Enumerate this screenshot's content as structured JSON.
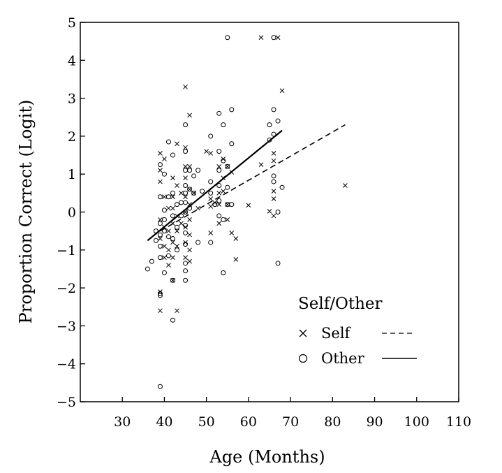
{
  "chart_data": {
    "type": "scatter",
    "xlabel": "Age (Months)",
    "ylabel": "Proportion Correct (Logit)",
    "xlim": [
      20,
      110
    ],
    "ylim": [
      -5,
      5
    ],
    "xticks": [
      30,
      40,
      50,
      60,
      70,
      80,
      90,
      100,
      110
    ],
    "yticks": [
      -5,
      -4,
      -3,
      -2,
      -1,
      0,
      1,
      2,
      3,
      4,
      5
    ],
    "ytick_labels": [
      "−5",
      "−4",
      "−3",
      "−2",
      "−1",
      "0",
      "1",
      "2",
      "3",
      "4",
      "5"
    ],
    "grid": false,
    "legend": {
      "title": "Self/Other",
      "placement": "bottom-right"
    },
    "series": [
      {
        "name": "Self",
        "marker": "x",
        "line_style": "dashed",
        "fit": [
          [
            39,
            -0.5
          ],
          [
            83,
            2.3
          ]
        ],
        "points": [
          [
            39,
            1.55
          ],
          [
            39,
            1.1
          ],
          [
            40,
            1.4
          ],
          [
            39,
            0.8
          ],
          [
            40,
            0.4
          ],
          [
            41,
            0.1
          ],
          [
            39,
            -0.2
          ],
          [
            40,
            -0.4
          ],
          [
            41,
            -0.5
          ],
          [
            39,
            -0.7
          ],
          [
            40,
            -0.9
          ],
          [
            41,
            -1.0
          ],
          [
            40,
            -1.2
          ],
          [
            42,
            0.9
          ],
          [
            42,
            0.4
          ],
          [
            43,
            0.7
          ],
          [
            42,
            0.1
          ],
          [
            43,
            -0.1
          ],
          [
            42,
            -0.3
          ],
          [
            43,
            -0.5
          ],
          [
            42,
            -0.8
          ],
          [
            43,
            -0.9
          ],
          [
            42,
            -1.2
          ],
          [
            41,
            -1.4
          ],
          [
            39,
            -2.1
          ],
          [
            39,
            -2.6
          ],
          [
            43,
            -2.6
          ],
          [
            42,
            -1.8
          ],
          [
            43,
            1.8
          ],
          [
            44,
            0.5
          ],
          [
            44,
            -0.3
          ],
          [
            45,
            3.3
          ],
          [
            45,
            1.7
          ],
          [
            45,
            1.2
          ],
          [
            46,
            1.2
          ],
          [
            45,
            0.9
          ],
          [
            46,
            0.6
          ],
          [
            45,
            0.4
          ],
          [
            46,
            0.2
          ],
          [
            45,
            0.0
          ],
          [
            46,
            -0.2
          ],
          [
            45,
            -0.4
          ],
          [
            46,
            -0.6
          ],
          [
            45,
            -0.8
          ],
          [
            46,
            -1.0
          ],
          [
            45,
            -1.2
          ],
          [
            46,
            -1.3
          ],
          [
            46,
            2.55
          ],
          [
            47,
            0.5
          ],
          [
            48,
            0.1
          ],
          [
            50,
            1.6
          ],
          [
            51,
            1.55
          ],
          [
            51,
            0.35
          ],
          [
            51,
            0.15
          ],
          [
            51,
            -0.55
          ],
          [
            52,
            0.25
          ],
          [
            53,
            1.2
          ],
          [
            53,
            0.5
          ],
          [
            53,
            0.2
          ],
          [
            53,
            -0.3
          ],
          [
            54,
            1.4
          ],
          [
            54,
            0.9
          ],
          [
            54,
            0.55
          ],
          [
            55,
            1.2
          ],
          [
            55,
            0.2
          ],
          [
            55,
            -0.2
          ],
          [
            56,
            1.05
          ],
          [
            56,
            -0.55
          ],
          [
            57,
            -0.7
          ],
          [
            57,
            -1.25
          ],
          [
            60,
            0.18
          ],
          [
            63,
            4.6
          ],
          [
            63,
            1.25
          ],
          [
            65,
            0.02
          ],
          [
            66,
            1.55
          ],
          [
            66,
            1.35
          ],
          [
            66,
            0.55
          ],
          [
            66,
            0.35
          ],
          [
            66,
            -0.1
          ],
          [
            67,
            4.6
          ],
          [
            68,
            3.2
          ],
          [
            83,
            0.7
          ]
        ]
      },
      {
        "name": "Other",
        "marker": "o",
        "line_style": "solid",
        "fit": [
          [
            36,
            -0.75
          ],
          [
            68,
            2.15
          ]
        ],
        "points": [
          [
            36,
            -1.5
          ],
          [
            37,
            -1.3
          ],
          [
            38,
            -0.5
          ],
          [
            38,
            -0.75
          ],
          [
            39,
            1.25
          ],
          [
            39,
            0.4
          ],
          [
            39,
            -0.3
          ],
          [
            39,
            -0.6
          ],
          [
            39,
            -0.9
          ],
          [
            39,
            -1.2
          ],
          [
            39,
            -2.2
          ],
          [
            39,
            -2.15
          ],
          [
            39,
            -4.6
          ],
          [
            40,
            1.0
          ],
          [
            40,
            0.05
          ],
          [
            40,
            -0.2
          ],
          [
            40,
            -0.5
          ],
          [
            40,
            -1.6
          ],
          [
            41,
            1.85
          ],
          [
            41,
            0.4
          ],
          [
            41,
            -0.65
          ],
          [
            41,
            -1.15
          ],
          [
            42,
            1.5
          ],
          [
            42,
            0.5
          ],
          [
            42,
            -0.1
          ],
          [
            42,
            -0.7
          ],
          [
            42,
            -1.8
          ],
          [
            42,
            -2.85
          ],
          [
            43,
            0.2
          ],
          [
            43,
            -0.4
          ],
          [
            43,
            -1.0
          ],
          [
            44,
            0.25
          ],
          [
            44,
            -0.1
          ],
          [
            45,
            2.3
          ],
          [
            45,
            1.6
          ],
          [
            45,
            1.1
          ],
          [
            45,
            0.7
          ],
          [
            45,
            0.5
          ],
          [
            45,
            0.25
          ],
          [
            45,
            0.0
          ],
          [
            45,
            -0.35
          ],
          [
            45,
            -0.55
          ],
          [
            45,
            -0.85
          ],
          [
            45,
            -1.35
          ],
          [
            45,
            -1.55
          ],
          [
            45,
            -1.8
          ],
          [
            46,
            1.1
          ],
          [
            46,
            0.6
          ],
          [
            46,
            0.1
          ],
          [
            47,
            0.95
          ],
          [
            47,
            0.5
          ],
          [
            48,
            1.1
          ],
          [
            48,
            -0.8
          ],
          [
            49,
            0.55
          ],
          [
            51,
            2.0
          ],
          [
            51,
            0.8
          ],
          [
            51,
            0.5
          ],
          [
            51,
            -0.8
          ],
          [
            52,
            0.2
          ],
          [
            53,
            2.6
          ],
          [
            53,
            1.6
          ],
          [
            53,
            1.1
          ],
          [
            53,
            0.7
          ],
          [
            53,
            0.3
          ],
          [
            53,
            -0.1
          ],
          [
            54,
            2.3
          ],
          [
            54,
            1.35
          ],
          [
            54,
            -1.6
          ],
          [
            54,
            -0.2
          ],
          [
            55,
            4.6
          ],
          [
            55,
            1.2
          ],
          [
            55,
            0.65
          ],
          [
            55,
            0.2
          ],
          [
            56,
            2.7
          ],
          [
            56,
            1.8
          ],
          [
            56,
            0.2
          ],
          [
            65,
            2.3
          ],
          [
            65,
            1.9
          ],
          [
            66,
            4.6
          ],
          [
            66,
            2.7
          ],
          [
            66,
            2.05
          ],
          [
            66,
            0.95
          ],
          [
            66,
            0.8
          ],
          [
            67,
            2.4
          ],
          [
            67,
            0.0
          ],
          [
            67,
            -1.35
          ],
          [
            68,
            0.65
          ]
        ]
      }
    ]
  }
}
